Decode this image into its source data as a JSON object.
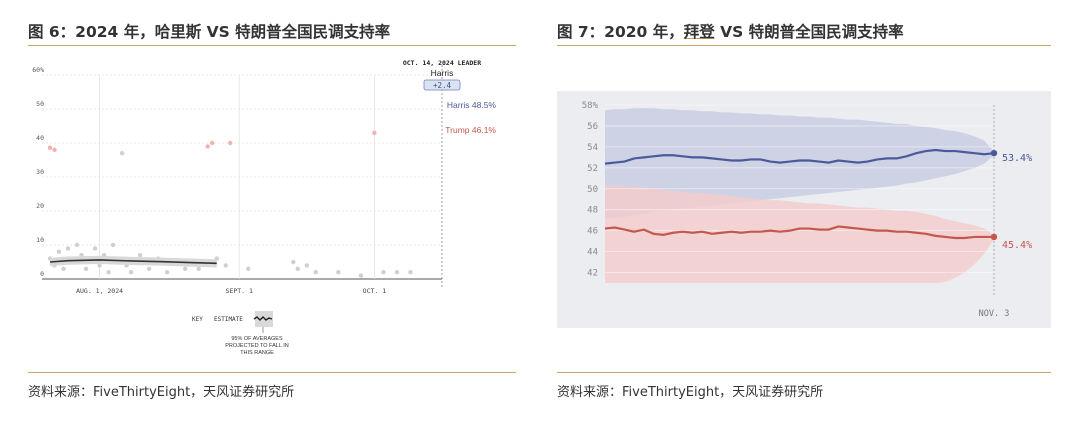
{
  "left": {
    "title_prefix": "图 6：2024 年，哈里斯 VS 特朗普全国民调支持率",
    "source": "资料来源：FiveThirtyEight，天风证券研究所"
  },
  "right": {
    "title_a": "图 7：2020 年，",
    "title_b": "拜登",
    "title_c": " VS 特朗普全国民调支持率",
    "source": "资料来源：FiveThirtyEight，天风证券研究所"
  },
  "colors": {
    "rule": "#c8a564",
    "harris": "#4a5a9a",
    "trump": "#c4584c",
    "biden_line": "#4a5a9a",
    "band_blue": "#c9cde3",
    "band_red": "#f3cccc",
    "right_bg": "#ecedf1"
  },
  "chart_data": [
    {
      "type": "scatter",
      "chart": "2024",
      "ylim": [
        0,
        60
      ],
      "yticks": [
        "60%",
        "50",
        "40",
        "30",
        "20",
        "10",
        "0"
      ],
      "ytick_values": [
        60,
        50,
        40,
        30,
        20,
        10,
        0
      ],
      "xticks": [
        {
          "label": "AUG. 1, 2024",
          "date": "2024-08-01"
        },
        {
          "label": "SEPT. 1",
          "date": "2024-09-01"
        },
        {
          "label": "OCT. 1",
          "date": "2024-10-01"
        }
      ],
      "x_range": [
        "2024-07-21",
        "2024-10-16"
      ],
      "leader_box": {
        "date_label": "OCT. 14, 2024 LEADER",
        "name": "Harris",
        "margin": "+2.4"
      },
      "series": [
        {
          "name": "Harris",
          "label": "Harris 48.5%",
          "value": 48.5
        },
        {
          "name": "Trump",
          "label": "Trump 46.1%",
          "value": 46.1
        }
      ],
      "red_points": [
        {
          "date": "2024-07-21",
          "value": 38.6
        },
        {
          "date": "2024-07-22",
          "value": 38.0
        },
        {
          "date": "2024-08-25",
          "value": 39.0
        },
        {
          "date": "2024-08-26",
          "value": 40.0
        },
        {
          "date": "2024-08-30",
          "value": 40.0
        },
        {
          "date": "2024-10-01",
          "value": 43.0
        }
      ],
      "other_estimate": [
        {
          "date": "2024-07-21",
          "value": 5.0
        },
        {
          "date": "2024-07-25",
          "value": 5.4
        },
        {
          "date": "2024-08-01",
          "value": 5.6
        },
        {
          "date": "2024-08-08",
          "value": 5.3
        },
        {
          "date": "2024-08-15",
          "value": 5.1
        },
        {
          "date": "2024-08-22",
          "value": 4.8
        },
        {
          "date": "2024-08-27",
          "value": 4.6
        }
      ],
      "other_points": [
        {
          "date": "2024-07-21",
          "value": 6
        },
        {
          "date": "2024-07-22",
          "value": 4
        },
        {
          "date": "2024-07-23",
          "value": 8
        },
        {
          "date": "2024-07-24",
          "value": 3
        },
        {
          "date": "2024-07-25",
          "value": 9
        },
        {
          "date": "2024-07-26",
          "value": 5
        },
        {
          "date": "2024-07-27",
          "value": 10
        },
        {
          "date": "2024-07-28",
          "value": 7
        },
        {
          "date": "2024-07-29",
          "value": 3
        },
        {
          "date": "2024-07-30",
          "value": 6
        },
        {
          "date": "2024-07-31",
          "value": 9
        },
        {
          "date": "2024-08-01",
          "value": 4
        },
        {
          "date": "2024-08-02",
          "value": 7
        },
        {
          "date": "2024-08-03",
          "value": 2
        },
        {
          "date": "2024-08-04",
          "value": 10
        },
        {
          "date": "2024-08-05",
          "value": 5
        },
        {
          "date": "2024-08-06",
          "value": 37
        },
        {
          "date": "2024-08-07",
          "value": 4
        },
        {
          "date": "2024-08-08",
          "value": 2
        },
        {
          "date": "2024-08-10",
          "value": 7
        },
        {
          "date": "2024-08-12",
          "value": 3
        },
        {
          "date": "2024-08-14",
          "value": 6
        },
        {
          "date": "2024-08-16",
          "value": 2
        },
        {
          "date": "2024-08-18",
          "value": 5
        },
        {
          "date": "2024-08-20",
          "value": 3
        },
        {
          "date": "2024-08-23",
          "value": 3
        },
        {
          "date": "2024-08-25",
          "value": 5
        },
        {
          "date": "2024-08-27",
          "value": 6
        },
        {
          "date": "2024-08-29",
          "value": 4
        },
        {
          "date": "2024-09-03",
          "value": 3
        },
        {
          "date": "2024-09-13",
          "value": 5
        },
        {
          "date": "2024-09-14",
          "value": 3
        },
        {
          "date": "2024-09-16",
          "value": 4
        },
        {
          "date": "2024-09-18",
          "value": 2
        },
        {
          "date": "2024-09-23",
          "value": 2
        },
        {
          "date": "2024-09-28",
          "value": 1
        },
        {
          "date": "2024-10-03",
          "value": 2
        },
        {
          "date": "2024-10-06",
          "value": 2
        },
        {
          "date": "2024-10-09",
          "value": 2
        }
      ],
      "key": {
        "key_label": "KEY",
        "estimate_label": "ESTIMATE",
        "range_note_1": "95% OF AVERAGES",
        "range_note_2": "PROJECTED TO FALL IN",
        "range_note_3": "THIS RANGE"
      }
    },
    {
      "type": "line",
      "chart": "2020",
      "ylim": [
        41,
        58
      ],
      "yticks": [
        "58%",
        "56",
        "54",
        "52",
        "50",
        "48",
        "46",
        "44",
        "42"
      ],
      "ytick_values": [
        58,
        56,
        54,
        52,
        50,
        48,
        46,
        44,
        42
      ],
      "xticks": [
        {
          "label": "NOV. 3",
          "index": 40
        }
      ],
      "x_count": 41,
      "series": [
        {
          "name": "Biden",
          "end_label": "53.4%",
          "values": [
            52.4,
            52.5,
            52.6,
            52.9,
            53.0,
            53.1,
            53.2,
            53.2,
            53.1,
            53.0,
            53.0,
            52.9,
            52.8,
            52.7,
            52.7,
            52.8,
            52.8,
            52.6,
            52.5,
            52.6,
            52.7,
            52.7,
            52.6,
            52.5,
            52.7,
            52.6,
            52.5,
            52.6,
            52.8,
            52.9,
            52.9,
            53.1,
            53.4,
            53.6,
            53.7,
            53.6,
            53.6,
            53.5,
            53.4,
            53.3,
            53.4
          ],
          "band_upper": [
            57.5,
            57.6,
            57.6,
            57.7,
            57.7,
            57.7,
            57.6,
            57.6,
            57.5,
            57.5,
            57.4,
            57.4,
            57.3,
            57.3,
            57.2,
            57.2,
            57.1,
            57.1,
            57.0,
            57.0,
            56.9,
            56.9,
            56.8,
            56.8,
            56.7,
            56.6,
            56.6,
            56.5,
            56.4,
            56.3,
            56.2,
            56.2,
            56.0,
            55.9,
            55.8,
            55.6,
            55.5,
            55.3,
            55.0,
            54.6,
            53.6
          ],
          "band_lower": [
            47.2,
            47.2,
            47.3,
            47.5,
            47.6,
            47.8,
            47.9,
            48.0,
            48.1,
            48.2,
            48.3,
            48.4,
            48.5,
            48.6,
            48.7,
            48.8,
            48.9,
            49.0,
            49.1,
            49.2,
            49.3,
            49.4,
            49.5,
            49.6,
            49.7,
            49.8,
            49.9,
            50.0,
            50.1,
            50.2,
            50.3,
            50.5,
            50.6,
            50.8,
            51.0,
            51.2,
            51.4,
            51.7,
            52.0,
            52.4,
            53.2
          ]
        },
        {
          "name": "Trump",
          "end_label": "45.4%",
          "values": [
            46.2,
            46.3,
            46.1,
            45.9,
            46.1,
            45.7,
            45.6,
            45.8,
            45.9,
            45.8,
            45.9,
            45.7,
            45.8,
            45.9,
            45.8,
            45.9,
            45.9,
            46.0,
            45.9,
            46.0,
            46.2,
            46.2,
            46.1,
            46.1,
            46.4,
            46.3,
            46.2,
            46.1,
            46.0,
            46.0,
            45.9,
            45.9,
            45.8,
            45.7,
            45.5,
            45.4,
            45.3,
            45.3,
            45.4,
            45.4,
            45.4
          ],
          "band_upper": [
            50.3,
            50.3,
            50.2,
            50.2,
            50.1,
            50.0,
            49.9,
            49.8,
            49.7,
            49.6,
            49.6,
            49.5,
            49.4,
            49.3,
            49.2,
            49.1,
            49.0,
            48.9,
            48.9,
            48.8,
            48.7,
            48.6,
            48.6,
            48.5,
            48.4,
            48.3,
            48.2,
            48.2,
            48.1,
            48.0,
            47.9,
            47.9,
            47.8,
            47.6,
            47.4,
            47.1,
            46.9,
            46.7,
            46.5,
            46.2,
            45.6
          ],
          "band_lower": [
            41.0,
            41.0,
            41.0,
            41.0,
            41.0,
            41.0,
            41.0,
            41.0,
            41.0,
            41.0,
            41.0,
            41.0,
            41.0,
            41.0,
            41.0,
            41.0,
            41.0,
            41.0,
            41.0,
            41.0,
            41.0,
            41.0,
            41.0,
            41.0,
            41.0,
            41.0,
            41.0,
            41.0,
            41.0,
            41.0,
            41.0,
            41.0,
            41.0,
            41.0,
            41.0,
            41.1,
            41.5,
            42.0,
            42.8,
            43.8,
            45.2
          ]
        }
      ]
    }
  ]
}
